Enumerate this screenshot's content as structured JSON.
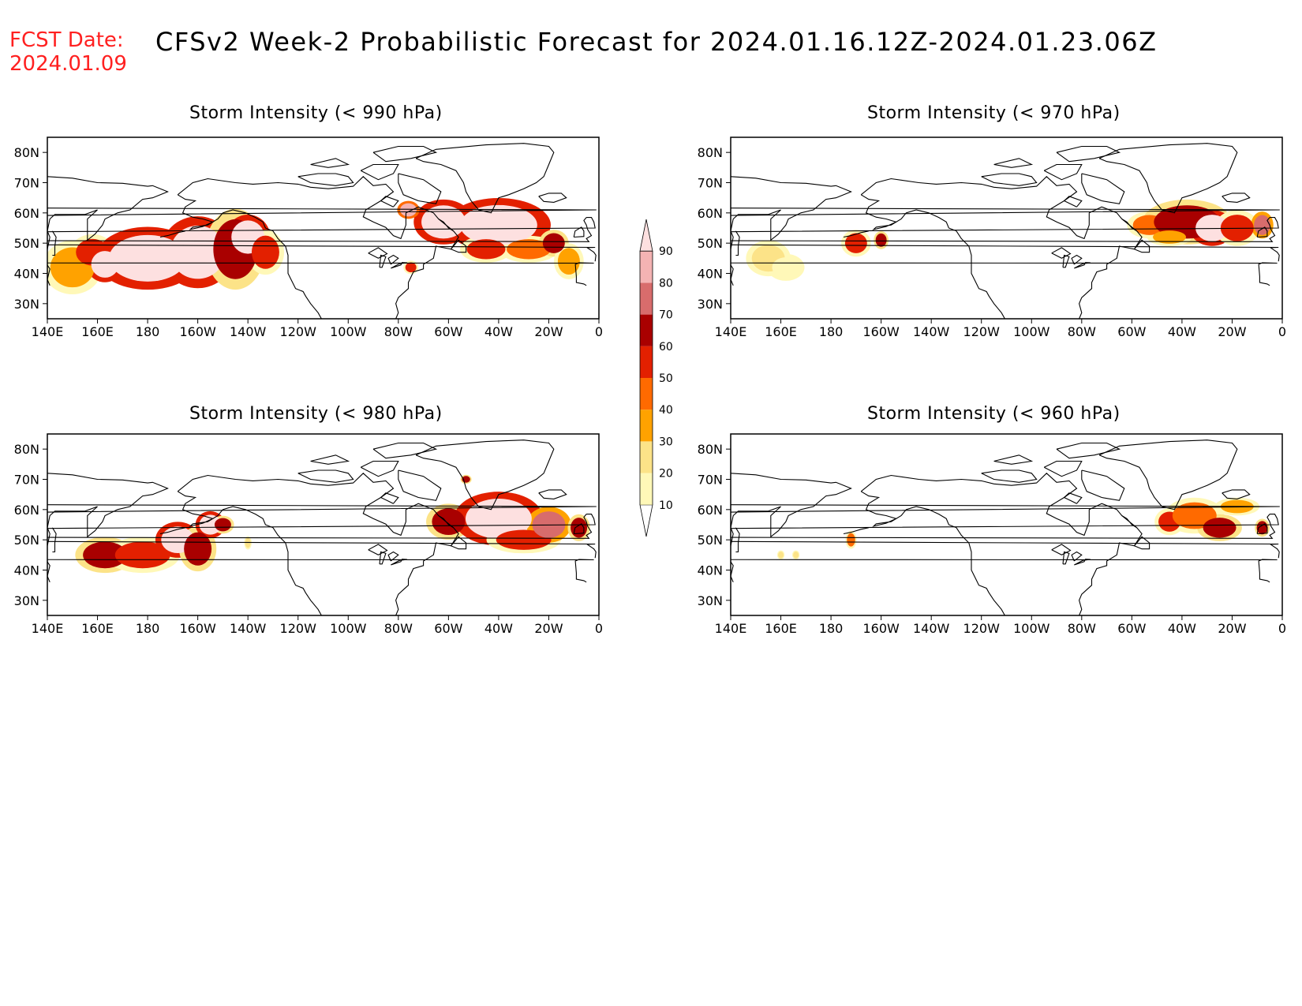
{
  "header": {
    "fcst_label": "FCST Date:",
    "fcst_date": "2024.01.09",
    "title": "CFSv2 Week-2 Probabilistic Forecast for 2024.01.16.12Z-2024.01.23.06Z",
    "fcst_color": "#ff2020"
  },
  "axes": {
    "lat_labels": [
      "80N",
      "70N",
      "60N",
      "50N",
      "40N",
      "30N"
    ],
    "lon_labels": [
      "140E",
      "160E",
      "180",
      "160W",
      "140W",
      "120W",
      "100W",
      "80W",
      "60W",
      "40W",
      "20W",
      "0"
    ]
  },
  "panels": [
    {
      "id": "p990",
      "title": "Storm Intensity (< 990 hPa)",
      "regions": [
        {
          "lon": 150,
          "lat": 42,
          "rx": 8,
          "ry": 6,
          "v": 30
        },
        {
          "lon": 158,
          "lat": 47,
          "rx": 6,
          "ry": 4,
          "v": 50
        },
        {
          "lon": 163,
          "lat": 43,
          "rx": 5,
          "ry": 4,
          "v": 90
        },
        {
          "lon": 180,
          "lat": 45,
          "rx": 14,
          "ry": 7,
          "v": 90
        },
        {
          "lon": -160,
          "lat": 47,
          "rx": 10,
          "ry": 8,
          "v": 90
        },
        {
          "lon": -145,
          "lat": 48,
          "rx": 8,
          "ry": 9,
          "v": 60
        },
        {
          "lon": -140,
          "lat": 52,
          "rx": 6,
          "ry": 5,
          "v": 90
        },
        {
          "lon": -133,
          "lat": 47,
          "rx": 5,
          "ry": 5,
          "v": 50
        },
        {
          "lon": -62,
          "lat": 57,
          "rx": 8,
          "ry": 5,
          "v": 90
        },
        {
          "lon": -40,
          "lat": 56,
          "rx": 14,
          "ry": 6,
          "v": 90
        },
        {
          "lon": -45,
          "lat": 48,
          "rx": 7,
          "ry": 3,
          "v": 50
        },
        {
          "lon": -28,
          "lat": 48,
          "rx": 8,
          "ry": 3,
          "v": 40
        },
        {
          "lon": -18,
          "lat": 50,
          "rx": 4,
          "ry": 3,
          "v": 60
        },
        {
          "lon": -12,
          "lat": 44,
          "rx": 4,
          "ry": 4,
          "v": 30
        },
        {
          "lon": -76,
          "lat": 61,
          "rx": 3,
          "ry": 2,
          "v": 80
        },
        {
          "lon": -75,
          "lat": 42,
          "rx": 2,
          "ry": 1.5,
          "v": 50
        }
      ]
    },
    {
      "id": "p970",
      "title": "Storm Intensity (< 970 hPa)",
      "regions": [
        {
          "lon": 155,
          "lat": 45,
          "rx": 6,
          "ry": 4,
          "v": 20
        },
        {
          "lon": 162,
          "lat": 42,
          "rx": 5,
          "ry": 3,
          "v": 10
        },
        {
          "lon": -170,
          "lat": 50,
          "rx": 4,
          "ry": 3,
          "v": 50
        },
        {
          "lon": -160,
          "lat": 51,
          "rx": 2,
          "ry": 2,
          "v": 60
        },
        {
          "lon": -53,
          "lat": 56,
          "rx": 6,
          "ry": 3,
          "v": 40
        },
        {
          "lon": -38,
          "lat": 57,
          "rx": 12,
          "ry": 5,
          "v": 60
        },
        {
          "lon": -28,
          "lat": 55,
          "rx": 6,
          "ry": 4,
          "v": 90
        },
        {
          "lon": -45,
          "lat": 52,
          "rx": 6,
          "ry": 2,
          "v": 30
        },
        {
          "lon": -18,
          "lat": 55,
          "rx": 6,
          "ry": 4,
          "v": 50
        },
        {
          "lon": -8,
          "lat": 56,
          "rx": 3,
          "ry": 3,
          "v": 70
        }
      ]
    },
    {
      "id": "p980",
      "title": "Storm Intensity (< 980 hPa)",
      "regions": [
        {
          "lon": 163,
          "lat": 45,
          "rx": 8,
          "ry": 4,
          "v": 60
        },
        {
          "lon": 178,
          "lat": 45,
          "rx": 10,
          "ry": 4,
          "v": 50
        },
        {
          "lon": -168,
          "lat": 50,
          "rx": 6,
          "ry": 4,
          "v": 90
        },
        {
          "lon": -160,
          "lat": 47,
          "rx": 5,
          "ry": 5,
          "v": 60
        },
        {
          "lon": -155,
          "lat": 55,
          "rx": 4,
          "ry": 3,
          "v": 90
        },
        {
          "lon": -150,
          "lat": 55,
          "rx": 3,
          "ry": 2,
          "v": 60
        },
        {
          "lon": -140,
          "lat": 49,
          "rx": 1,
          "ry": 1.5,
          "v": 20
        },
        {
          "lon": -60,
          "lat": 56,
          "rx": 6,
          "ry": 4,
          "v": 60
        },
        {
          "lon": -40,
          "lat": 57,
          "rx": 12,
          "ry": 6,
          "v": 90
        },
        {
          "lon": -30,
          "lat": 50,
          "rx": 10,
          "ry": 3,
          "v": 50
        },
        {
          "lon": -20,
          "lat": 55,
          "rx": 6,
          "ry": 4,
          "v": 70
        },
        {
          "lon": -8,
          "lat": 54,
          "rx": 3,
          "ry": 3,
          "v": 60
        },
        {
          "lon": -53,
          "lat": 70,
          "rx": 1.5,
          "ry": 1,
          "v": 60
        }
      ]
    },
    {
      "id": "p960",
      "title": "Storm Intensity (< 960 hPa)",
      "regions": [
        {
          "lon": 160,
          "lat": 45,
          "rx": 1,
          "ry": 1,
          "v": 20
        },
        {
          "lon": 166,
          "lat": 45,
          "rx": 1,
          "ry": 1,
          "v": 20
        },
        {
          "lon": -172,
          "lat": 50,
          "rx": 1.5,
          "ry": 2,
          "v": 40
        },
        {
          "lon": -45,
          "lat": 56,
          "rx": 4,
          "ry": 3,
          "v": 50
        },
        {
          "lon": -35,
          "lat": 58,
          "rx": 8,
          "ry": 4,
          "v": 40
        },
        {
          "lon": -25,
          "lat": 54,
          "rx": 6,
          "ry": 3,
          "v": 60
        },
        {
          "lon": -18,
          "lat": 61,
          "rx": 6,
          "ry": 2,
          "v": 30
        },
        {
          "lon": -8,
          "lat": 54,
          "rx": 2,
          "ry": 2,
          "v": 60
        }
      ]
    }
  ],
  "colorbar": {
    "levels": [
      10,
      20,
      30,
      40,
      50,
      60,
      70,
      80,
      90
    ],
    "colors": [
      "#ffffff",
      "#fff8b8",
      "#fce388",
      "#ffa200",
      "#ff6a00",
      "#e32000",
      "#a90000",
      "#d86c6c",
      "#f4b3b3",
      "#fde0e0"
    ]
  }
}
